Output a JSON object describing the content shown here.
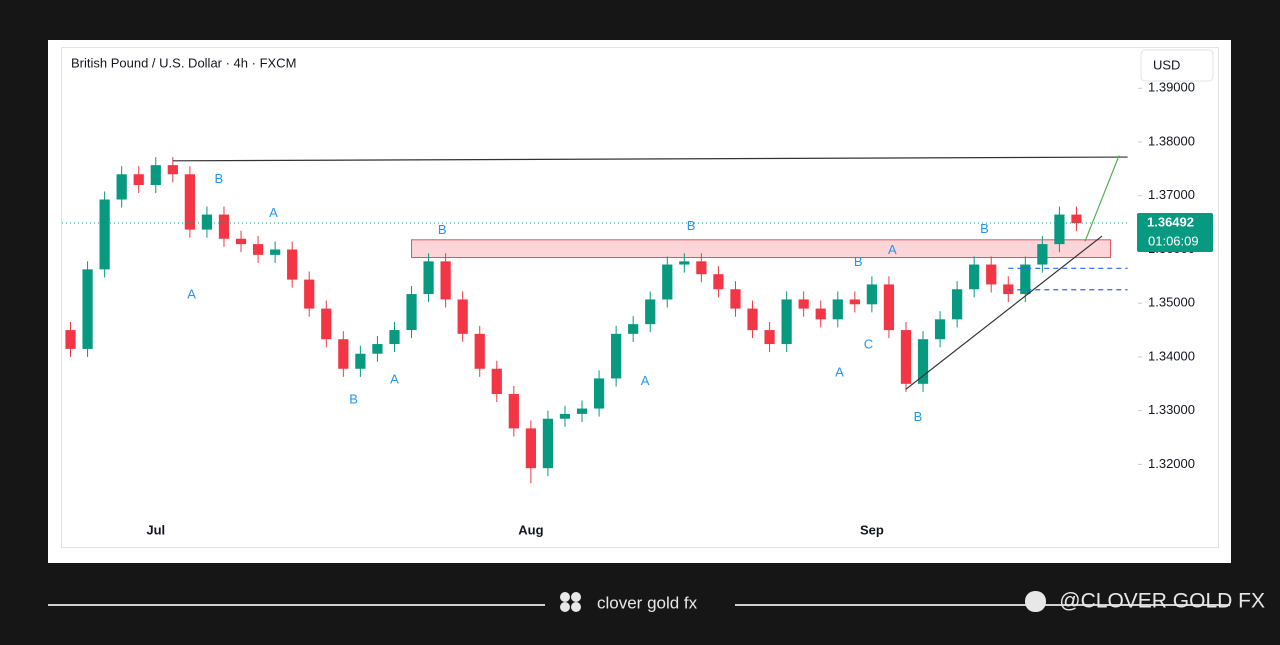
{
  "chart_data": {
    "type": "candlestick",
    "title": "British Pound / U.S. Dollar · 4h · FXCM",
    "currency": "USD",
    "categories": [
      null,
      null,
      null,
      null,
      null,
      "Jul",
      null,
      null,
      null,
      null,
      null,
      null,
      null,
      null,
      null,
      null,
      null,
      null,
      null,
      null,
      null,
      null,
      null,
      null,
      null,
      null,
      null,
      "Aug",
      null,
      null,
      null,
      null,
      null,
      null,
      null,
      null,
      null,
      null,
      null,
      null,
      null,
      null,
      null,
      null,
      null,
      null,
      null,
      "Sep",
      null,
      null,
      null,
      null,
      null,
      null,
      null,
      null,
      null,
      null,
      null,
      null
    ],
    "open": [
      1.345,
      1.3415,
      1.3563,
      1.3693,
      1.374,
      1.372,
      1.3757,
      1.374,
      1.3637,
      1.3665,
      1.362,
      1.361,
      1.359,
      1.36,
      1.3544,
      1.349,
      1.3433,
      1.3378,
      1.3406,
      1.3424,
      1.345,
      1.3517,
      1.3578,
      1.3507,
      1.3443,
      1.3378,
      1.3331,
      1.3267,
      1.3193,
      1.3285,
      1.3294,
      1.3304,
      1.336,
      1.3443,
      1.3461,
      1.3507,
      1.3572,
      1.3578,
      1.3554,
      1.3526,
      1.349,
      1.345,
      1.3424,
      1.3507,
      1.349,
      1.347,
      1.3507,
      1.3498,
      1.3535,
      1.345,
      1.335,
      1.3433,
      1.347,
      1.3526,
      1.3572,
      1.3535,
      1.3517,
      1.3572,
      1.361,
      1.3665
    ],
    "high": [
      1.3465,
      1.3578,
      1.3708,
      1.3755,
      1.3755,
      1.3772,
      1.3772,
      1.3755,
      1.368,
      1.368,
      1.3635,
      1.3625,
      1.3615,
      1.3615,
      1.3559,
      1.3505,
      1.3448,
      1.3421,
      1.3439,
      1.3465,
      1.3532,
      1.3593,
      1.3593,
      1.3522,
      1.3458,
      1.3393,
      1.3346,
      1.3282,
      1.33,
      1.3309,
      1.3319,
      1.3375,
      1.3458,
      1.3476,
      1.3522,
      1.3587,
      1.3593,
      1.3593,
      1.3569,
      1.3541,
      1.3505,
      1.3465,
      1.3522,
      1.3522,
      1.3505,
      1.3522,
      1.3522,
      1.355,
      1.355,
      1.3465,
      1.3448,
      1.3485,
      1.3541,
      1.3587,
      1.3587,
      1.355,
      1.3587,
      1.3625,
      1.368,
      1.368
    ],
    "low": [
      1.34,
      1.34,
      1.3548,
      1.3678,
      1.3705,
      1.3705,
      1.3725,
      1.3622,
      1.3622,
      1.3605,
      1.3595,
      1.3575,
      1.3575,
      1.3529,
      1.3475,
      1.3418,
      1.3363,
      1.3363,
      1.3391,
      1.3409,
      1.3435,
      1.3502,
      1.3492,
      1.3428,
      1.3363,
      1.3316,
      1.3252,
      1.3165,
      1.3178,
      1.327,
      1.3279,
      1.3289,
      1.3345,
      1.3428,
      1.3446,
      1.3492,
      1.3557,
      1.3539,
      1.3511,
      1.3475,
      1.3435,
      1.3409,
      1.3409,
      1.3475,
      1.3455,
      1.3455,
      1.3483,
      1.3483,
      1.3435,
      1.3335,
      1.3335,
      1.3418,
      1.3455,
      1.3511,
      1.352,
      1.3502,
      1.3502,
      1.3557,
      1.3595,
      1.3634
    ],
    "close": [
      1.3415,
      1.3563,
      1.3693,
      1.374,
      1.372,
      1.3757,
      1.374,
      1.3637,
      1.3665,
      1.362,
      1.361,
      1.359,
      1.36,
      1.3544,
      1.349,
      1.3433,
      1.3378,
      1.3406,
      1.3424,
      1.345,
      1.3517,
      1.3578,
      1.3507,
      1.3443,
      1.3378,
      1.3331,
      1.3267,
      1.3193,
      1.3285,
      1.3294,
      1.3304,
      1.336,
      1.3443,
      1.3461,
      1.3507,
      1.3572,
      1.3578,
      1.3554,
      1.3526,
      1.349,
      1.345,
      1.3424,
      1.3507,
      1.349,
      1.347,
      1.3507,
      1.3498,
      1.3535,
      1.345,
      1.335,
      1.3433,
      1.347,
      1.3526,
      1.3572,
      1.3535,
      1.3517,
      1.3572,
      1.361,
      1.3665,
      1.3649
    ],
    "up_color": "#089981",
    "down_color": "#f23645",
    "ylim": [
      1.305,
      1.3975
    ],
    "yticks": [
      {
        "value": 1.32,
        "label": "1.32000"
      },
      {
        "value": 1.33,
        "label": "1.33000"
      },
      {
        "value": 1.34,
        "label": "1.34000"
      },
      {
        "value": 1.35,
        "label": "1.35000"
      },
      {
        "value": 1.36,
        "label": "1.36000"
      },
      {
        "value": 1.37,
        "label": "1.37000"
      },
      {
        "value": 1.38,
        "label": "1.38000"
      },
      {
        "value": 1.39,
        "label": "1.39000"
      }
    ],
    "last_price": 1.36492,
    "countdown": "01:06:09",
    "zones": [
      {
        "x": [
          20,
          61
        ],
        "price": [
          1.3585,
          1.3618
        ],
        "color": "#f7a1a6"
      }
    ],
    "lines": [
      {
        "x": [
          6,
          62
        ],
        "price": [
          1.3765,
          1.3772
        ],
        "color": "#333333"
      },
      {
        "x": [
          49,
          60.5
        ],
        "price": [
          1.334,
          1.3625
        ],
        "color": "#333333"
      },
      {
        "x": [
          59.5,
          61.5
        ],
        "price": [
          1.3615,
          1.3775
        ],
        "color": "#4caf50"
      },
      {
        "x": [
          55,
          62
        ],
        "price": [
          1.3565,
          1.3565
        ],
        "color": "#2962ff"
      },
      {
        "x": [
          55,
          62
        ],
        "price": [
          1.3525,
          1.3525
        ],
        "color": "#2962ff"
      }
    ],
    "annotations": [
      {
        "text": "B",
        "x": 8.7,
        "price": 1.373
      },
      {
        "text": "A",
        "x": 11.9,
        "price": 1.3667
      },
      {
        "text": "A",
        "x": 7.1,
        "price": 1.3515
      },
      {
        "text": "B",
        "x": 16.6,
        "price": 1.332
      },
      {
        "text": "A",
        "x": 19,
        "price": 1.3357
      },
      {
        "text": "B",
        "x": 21.8,
        "price": 1.3635
      },
      {
        "text": "B",
        "x": 36.4,
        "price": 1.3643
      },
      {
        "text": "A",
        "x": 33.7,
        "price": 1.3354
      },
      {
        "text": "B",
        "x": 46.2,
        "price": 1.3576
      },
      {
        "text": "A",
        "x": 48.2,
        "price": 1.3598
      },
      {
        "text": "C",
        "x": 46.8,
        "price": 1.3422
      },
      {
        "text": "A",
        "x": 45.1,
        "price": 1.337
      },
      {
        "text": "B",
        "x": 49.7,
        "price": 1.3287
      },
      {
        "text": "B",
        "x": 53.6,
        "price": 1.3637
      }
    ]
  },
  "footer": {
    "brand": "clover gold fx",
    "handle": "@CLOVER GOLD FX"
  }
}
